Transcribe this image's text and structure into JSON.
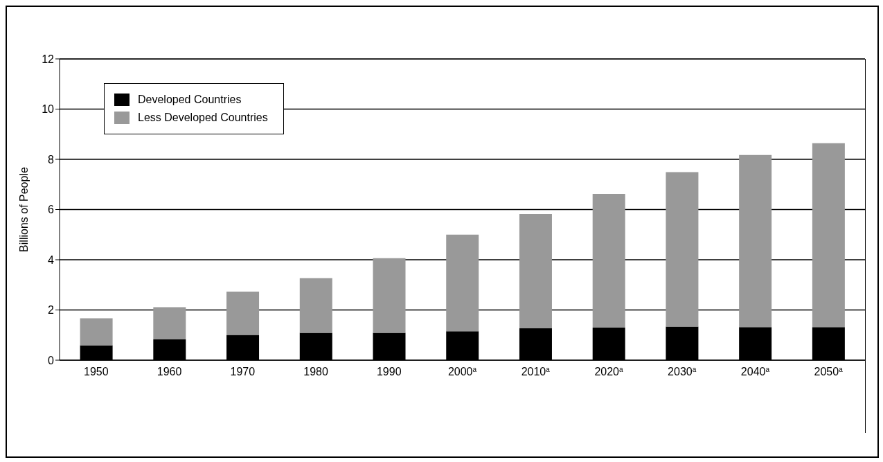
{
  "chart_data": {
    "type": "bar",
    "stacked": true,
    "ylabel": "Billions of People",
    "categories": [
      "1950",
      "1960",
      "1970",
      "1980",
      "1990",
      "2000$^{a}$",
      "2010$^{a}$",
      "2020$^{a}$",
      "2030$^{a}$",
      "2040$^{a}$",
      "2050$^{a}$"
    ],
    "series": [
      {
        "name": "Developed Countries",
        "color": "#000000",
        "values": [
          0.59,
          0.83,
          1.01,
          1.09,
          1.09,
          1.15,
          1.27,
          1.3,
          1.34,
          1.32,
          1.32
        ]
      },
      {
        "name": "Less Developed Countries",
        "color": "#999999",
        "values": [
          1.08,
          1.28,
          1.72,
          2.18,
          2.97,
          3.85,
          4.55,
          5.32,
          6.15,
          6.85,
          7.32
        ]
      }
    ],
    "ylim": [
      0,
      12
    ],
    "yticks": [
      0,
      2,
      4,
      6,
      8,
      10,
      12
    ],
    "grid": "y",
    "legend": "top left"
  }
}
